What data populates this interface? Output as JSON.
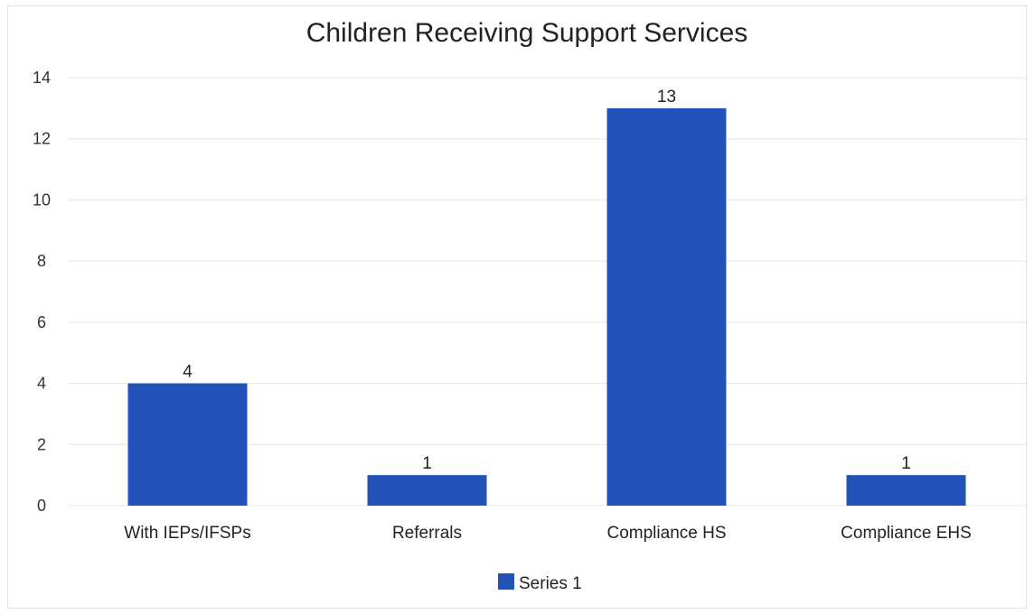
{
  "chart_data": {
    "type": "bar",
    "title": "Children Receiving Support Services",
    "xlabel": "",
    "ylabel": "",
    "categories": [
      "With IEPs/IFSPs",
      "Referrals",
      "Compliance HS",
      "Compliance EHS"
    ],
    "series": [
      {
        "name": "Series 1",
        "values": [
          4,
          1,
          13,
          1
        ],
        "color": "#2353b8"
      }
    ],
    "data_labels": [
      "4",
      "1",
      "13",
      "1"
    ],
    "ylim": [
      0,
      14
    ],
    "yticks": [
      0,
      2,
      4,
      6,
      8,
      10,
      12,
      14
    ],
    "grid": true,
    "legend": "bottom"
  }
}
